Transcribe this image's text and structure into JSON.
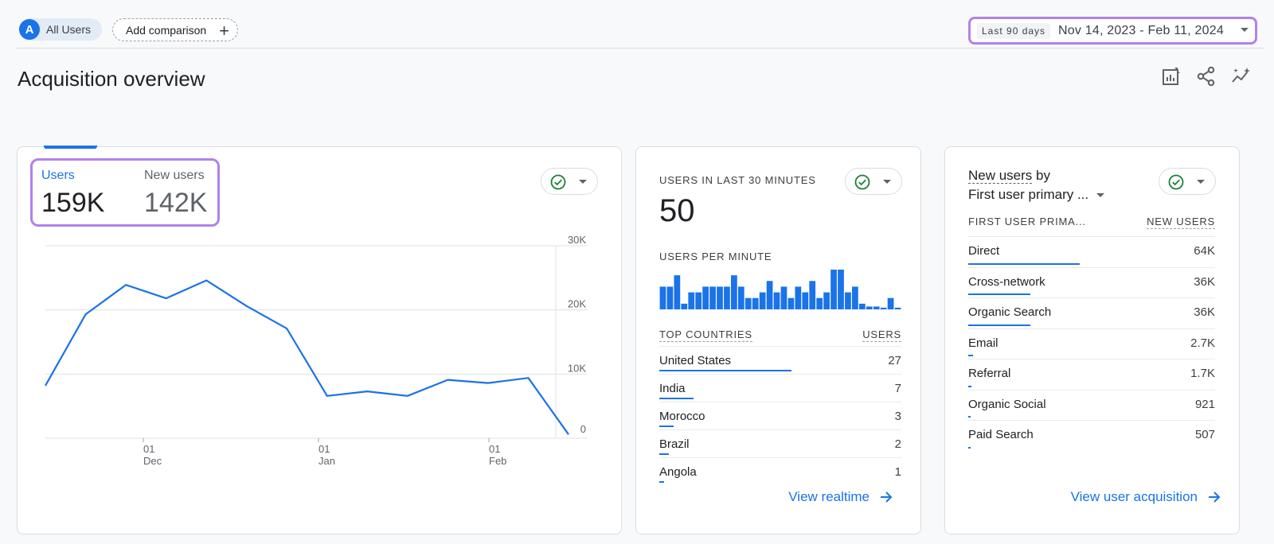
{
  "segment": {
    "avatar_letter": "A",
    "label": "All Users"
  },
  "add_comparison": {
    "label": "Add comparison",
    "plus": "+"
  },
  "date_range": {
    "preset": "Last 90 days",
    "range": "Nov 14, 2023 - Feb 11, 2024"
  },
  "page": {
    "title": "Acquisition overview"
  },
  "toolbar": {
    "icons": [
      "customize-report-icon",
      "share-icon",
      "insights-icon"
    ]
  },
  "card_users": {
    "metrics": [
      {
        "label": "Users",
        "value": "159K"
      },
      {
        "label": "New users",
        "value": "142K"
      }
    ]
  },
  "chart_data": {
    "type": "line",
    "series": [
      {
        "values": [
          8.2,
          19.3,
          23.9,
          21.8,
          24.6,
          20.6,
          17.1,
          6.6,
          7.3,
          6.6,
          9.1,
          8.6,
          9.4,
          0.6
        ]
      }
    ],
    "x_ticks": [
      {
        "day": "01",
        "month": "Dec"
      },
      {
        "day": "01",
        "month": "Jan"
      },
      {
        "day": "01",
        "month": "Feb"
      }
    ],
    "y_ticks": [
      "30K",
      "20K",
      "10K",
      "0"
    ],
    "ylim": [
      0,
      30
    ],
    "grid": true,
    "color": "#1a73e8"
  },
  "card_realtime": {
    "title": "USERS IN LAST 30 MINUTES",
    "value": "50",
    "per_minute_label": "USERS PER MINUTE",
    "per_minute": [
      4,
      4,
      6,
      1,
      3,
      3,
      4,
      4,
      4,
      4,
      6,
      4,
      2,
      2,
      3,
      5,
      3,
      4,
      2,
      4,
      3,
      5,
      2,
      3,
      7,
      7,
      3,
      4,
      1,
      0.5,
      0.5,
      0.3,
      2,
      0.3
    ],
    "table_head": {
      "name": "TOP COUNTRIES",
      "value": "USERS"
    },
    "rows": [
      {
        "name": "United States",
        "value": "27",
        "share": 1.0
      },
      {
        "name": "India",
        "value": "7",
        "share": 0.26
      },
      {
        "name": "Morocco",
        "value": "3",
        "share": 0.11
      },
      {
        "name": "Brazil",
        "value": "2",
        "share": 0.075
      },
      {
        "name": "Angola",
        "value": "1",
        "share": 0.037
      }
    ],
    "link": "View realtime"
  },
  "card_acq": {
    "title_dashed": "New users",
    "title_rest": " by",
    "dimension": "First user primary ...",
    "table_head": {
      "name": "FIRST USER PRIMA...",
      "value": "NEW USERS"
    },
    "rows": [
      {
        "name": "Direct",
        "value": "64K",
        "share": 1.0
      },
      {
        "name": "Cross-network",
        "value": "36K",
        "share": 0.56
      },
      {
        "name": "Organic Search",
        "value": "36K",
        "share": 0.56
      },
      {
        "name": "Email",
        "value": "2.7K",
        "share": 0.042
      },
      {
        "name": "Referral",
        "value": "1.7K",
        "share": 0.027
      },
      {
        "name": "Organic Social",
        "value": "921",
        "share": 0.014
      },
      {
        "name": "Paid Search",
        "value": "507",
        "share": 0.008
      }
    ],
    "link": "View user acquisition"
  },
  "colors": {
    "accent": "#1a73e8",
    "highlight": "#b282ea",
    "check": "#188038"
  }
}
